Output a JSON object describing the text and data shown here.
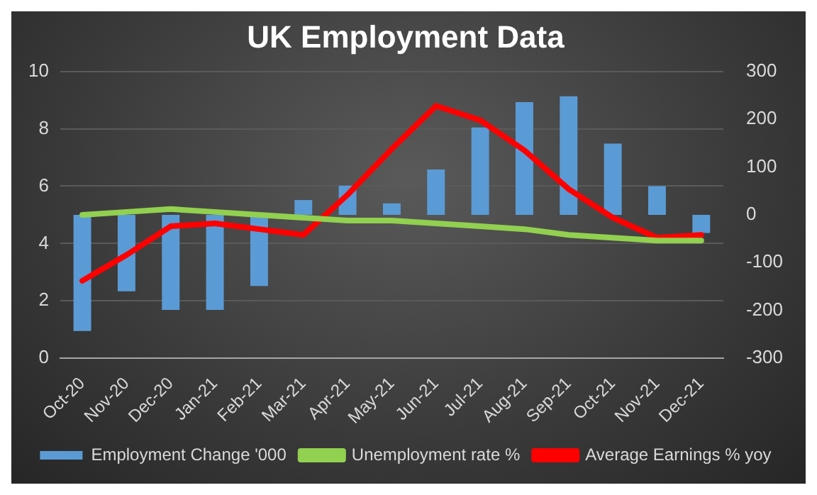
{
  "chart_data": {
    "type": "bar",
    "title": "UK Employment Data",
    "categories": [
      "Oct-20",
      "Nov-20",
      "Dec-20",
      "Jan-21",
      "Feb-21",
      "Mar-21",
      "Apr-21",
      "May-21",
      "Jun-21",
      "Jul-21",
      "Aug-21",
      "Sep-21",
      "Oct-21",
      "Nov-21",
      "Dec-21"
    ],
    "series": [
      {
        "name": "Employment Change '000",
        "axis": "y2",
        "color": "#5b9bd5",
        "values": [
          -243,
          -160,
          -199,
          -199,
          -149,
          31,
          61,
          24,
          95,
          183,
          236,
          248,
          149,
          60,
          -38
        ]
      },
      {
        "name": "Unemployment rate %",
        "type": "line",
        "color": "#92d050",
        "values": [
          5.0,
          5.1,
          5.2,
          5.1,
          5.0,
          4.9,
          4.8,
          4.8,
          4.7,
          4.6,
          4.5,
          4.3,
          4.2,
          4.1,
          4.1
        ]
      },
      {
        "name": "Average Earnings % yoy",
        "type": "line",
        "color": "#ff0000",
        "values": [
          2.7,
          3.6,
          4.6,
          4.7,
          4.5,
          4.3,
          5.7,
          7.3,
          8.8,
          8.3,
          7.25,
          5.9,
          4.9,
          4.2,
          4.3
        ]
      }
    ],
    "ylim": [
      0,
      10
    ],
    "yticks": [
      0,
      2,
      4,
      6,
      8,
      10
    ],
    "y2lim": [
      -300,
      300
    ],
    "y2ticks": [
      -300,
      -200,
      -100,
      0,
      100,
      200,
      300
    ],
    "grid": "y",
    "legend": "bottom",
    "marker": "none",
    "line_style": "solid"
  }
}
